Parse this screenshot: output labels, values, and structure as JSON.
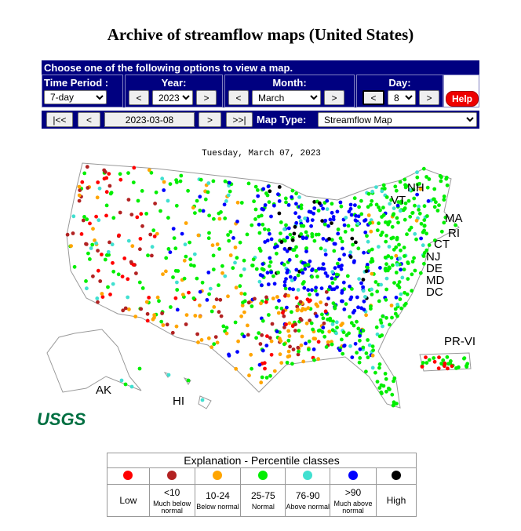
{
  "header": {
    "title": "Archive of streamflow maps (United States)"
  },
  "controls": {
    "prompt": "Choose one of the following options to view a map.",
    "time_period": {
      "label": "Time Period :",
      "value": "7-day"
    },
    "year": {
      "label": "Year:",
      "prev": "<",
      "value": "2023",
      "next": ">"
    },
    "month": {
      "label": "Month:",
      "prev": "<",
      "value": "March",
      "next": ">"
    },
    "day": {
      "label": "Day:",
      "prev": "<",
      "value": "8",
      "next": ">"
    },
    "help": "Help",
    "nav": {
      "first": "|<<",
      "prev": "<",
      "date": "2023-03-08",
      "next": ">",
      "last": ">>|"
    },
    "map_type": {
      "label": "Map Type:",
      "value": "Streamflow Map"
    }
  },
  "map": {
    "date": "Tuesday, March 07, 2023",
    "labels": [
      "NH",
      "VT",
      "MA",
      "RI",
      "CT",
      "NJ",
      "DE",
      "MD",
      "DC",
      "PR-VI",
      "AK",
      "HI"
    ],
    "logo": "USGS"
  },
  "legend": {
    "title": "Explanation - Percentile classes",
    "classes": [
      {
        "label": "Low",
        "color": "#ff0000"
      },
      {
        "label": "<10",
        "note": "Much below normal",
        "color": "#b22222"
      },
      {
        "label": "10-24",
        "note": "Below normal",
        "color": "#ffa500"
      },
      {
        "label": "25-75",
        "note": "Normal",
        "color": "#00ee00"
      },
      {
        "label": "76-90",
        "note": "Above normal",
        "color": "#40e0d0"
      },
      {
        "label": ">90",
        "note": "Much above normal",
        "color": "#0000ff"
      },
      {
        "label": "High",
        "color": "#000000"
      }
    ]
  }
}
